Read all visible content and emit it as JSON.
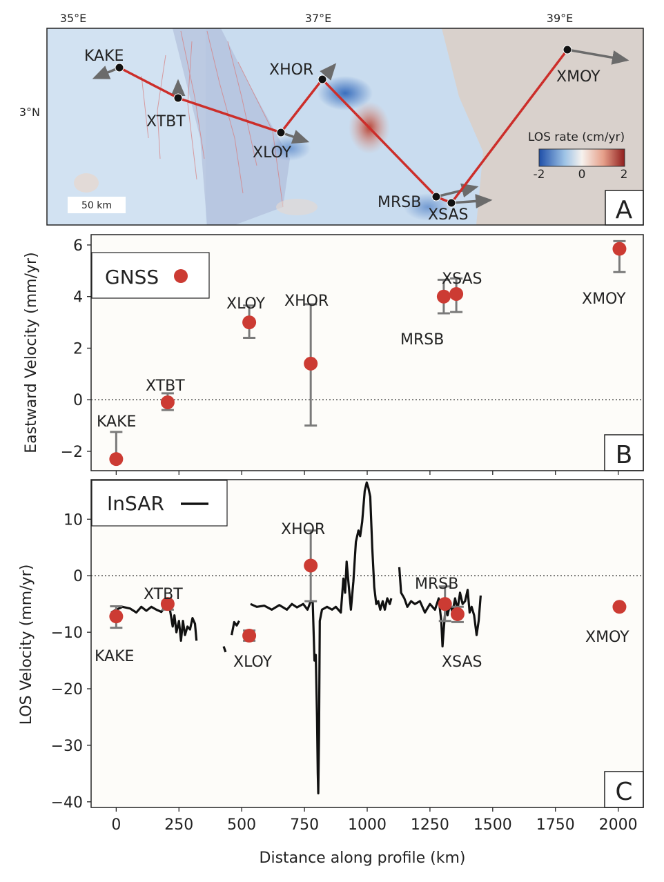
{
  "panel_a": {
    "letter": "A",
    "lon_labels": [
      "35°E",
      "37°E",
      "39°E"
    ],
    "lat_labels": [
      "3°N"
    ],
    "scale_bar": "50 km",
    "colorbar": {
      "title": "LOS rate (cm/yr)",
      "min_label": "-2",
      "mid_label": "0",
      "max_label": "2",
      "colors": [
        "#1f4fa8",
        "#9ec3e6",
        "#f6f2ee",
        "#e6a08a",
        "#8f1d1d"
      ]
    },
    "stations": [
      {
        "name": "KAKE"
      },
      {
        "name": "XTBT"
      },
      {
        "name": "XLOY"
      },
      {
        "name": "XHOR"
      },
      {
        "name": "MRSB"
      },
      {
        "name": "XSAS"
      },
      {
        "name": "XMOY"
      }
    ],
    "colors": {
      "profile": "#cc2e2a",
      "arrow": "#6b6b6b",
      "land": "#d9d1cc",
      "insar": "#c5daf0"
    }
  },
  "chart_data": [
    {
      "type": "scatter",
      "panel": "B",
      "ylabel": "Eastward Velocity (mm/yr)",
      "xlim": [
        -100,
        2100
      ],
      "ylim": [
        -2.75,
        6.4
      ],
      "yticks": [
        -2,
        0,
        2,
        4,
        6
      ],
      "legend": {
        "label": "GNSS",
        "position": "top-left"
      },
      "reference_line": 0,
      "series": [
        {
          "name": "GNSS",
          "color": "#cc3b33",
          "points": [
            {
              "label": "KAKE",
              "x": 0,
              "y": -2.3,
              "err_low": -2.3,
              "err_high": -1.25
            },
            {
              "label": "XTBT",
              "x": 205,
              "y": -0.1,
              "err_low": -0.4,
              "err_high": 0.25
            },
            {
              "label": "XLOY",
              "x": 530,
              "y": 3.0,
              "err_low": 2.4,
              "err_high": 3.65
            },
            {
              "label": "XHOR",
              "x": 775,
              "y": 1.4,
              "err_low": -1.0,
              "err_high": 3.7
            },
            {
              "label": "MRSB",
              "x": 1305,
              "y": 4.0,
              "err_low": 3.35,
              "err_high": 4.65
            },
            {
              "label": "XSAS",
              "x": 1355,
              "y": 4.1,
              "err_low": 3.4,
              "err_high": 4.7
            },
            {
              "label": "XMOY",
              "x": 2005,
              "y": 5.85,
              "err_low": 4.95,
              "err_high": 6.15
            }
          ]
        }
      ]
    },
    {
      "type": "line",
      "panel": "C",
      "xlabel": "Distance along profile (km)",
      "ylabel": "LOS Velocity (mm/yr)",
      "xlim": [
        -100,
        2100
      ],
      "ylim": [
        -41,
        17
      ],
      "xticks": [
        0,
        250,
        500,
        750,
        1000,
        1250,
        1500,
        1750,
        2000
      ],
      "yticks": [
        -40,
        -30,
        -20,
        -10,
        0,
        10
      ],
      "legend": {
        "label": "InSAR",
        "position": "top-left"
      },
      "reference_line": 0,
      "series": [
        {
          "name": "InSAR",
          "color": "#111111",
          "segments": [
            [
              [
                -20,
                -6.5
              ],
              [
                0,
                -6.0
              ],
              [
                25,
                -5.5
              ],
              [
                55,
                -5.8
              ],
              [
                80,
                -6.5
              ],
              [
                100,
                -5.5
              ],
              [
                120,
                -6.2
              ],
              [
                140,
                -5.5
              ],
              [
                160,
                -6.0
              ],
              [
                180,
                -6.4
              ],
              [
                200,
                -5.0
              ],
              [
                215,
                -6.2
              ],
              [
                225,
                -9.0
              ],
              [
                232,
                -7.0
              ],
              [
                240,
                -10.0
              ],
              [
                250,
                -8.0
              ],
              [
                258,
                -11.5
              ],
              [
                266,
                -8.0
              ],
              [
                274,
                -10.5
              ],
              [
                284,
                -9.0
              ],
              [
                294,
                -9.5
              ],
              [
                304,
                -7.5
              ],
              [
                314,
                -8.5
              ],
              [
                320,
                -11.5
              ]
            ],
            [
              [
                428,
                -12.5
              ],
              [
                436,
                -13.5
              ]
            ],
            [
              [
                460,
                -10.5
              ],
              [
                470,
                -8.2
              ],
              [
                480,
                -8.8
              ],
              [
                490,
                -8.0
              ]
            ],
            [
              [
                535,
                -5.0
              ],
              [
                560,
                -5.5
              ],
              [
                590,
                -5.3
              ],
              [
                620,
                -6.0
              ],
              [
                650,
                -5.2
              ],
              [
                680,
                -6.0
              ],
              [
                700,
                -5.0
              ],
              [
                720,
                -5.6
              ],
              [
                745,
                -5.0
              ],
              [
                762,
                -6.0
              ],
              [
                775,
                -4.5
              ],
              [
                783,
                -4.8
              ],
              [
                790,
                -15.0
              ],
              [
                795,
                -14.0
              ],
              [
                800,
                -25.0
              ],
              [
                803,
                -35.0
              ],
              [
                805,
                -38.5
              ],
              [
                808,
                -28.0
              ],
              [
                811,
                -8.0
              ],
              [
                820,
                -6.0
              ],
              [
                840,
                -5.5
              ],
              [
                860,
                -6.0
              ],
              [
                875,
                -5.5
              ],
              [
                895,
                -6.5
              ],
              [
                905,
                -0.5
              ],
              [
                912,
                -3.0
              ],
              [
                918,
                2.5
              ],
              [
                925,
                -1.0
              ],
              [
                935,
                -6.0
              ],
              [
                945,
                -1.0
              ],
              [
                955,
                6.0
              ],
              [
                965,
                8.0
              ],
              [
                972,
                7.0
              ],
              [
                980,
                9.5
              ],
              [
                990,
                15.0
              ],
              [
                998,
                16.5
              ],
              [
                1005,
                15.5
              ],
              [
                1012,
                14.0
              ],
              [
                1020,
                5.0
              ],
              [
                1028,
                -2.0
              ],
              [
                1036,
                -5.0
              ],
              [
                1044,
                -4.5
              ],
              [
                1052,
                -6.0
              ],
              [
                1062,
                -4.5
              ],
              [
                1070,
                -6.0
              ],
              [
                1080,
                -4.0
              ],
              [
                1090,
                -5.0
              ],
              [
                1096,
                -4.0
              ]
            ],
            [
              [
                1128,
                1.5
              ],
              [
                1135,
                -3.0
              ],
              [
                1148,
                -4.0
              ],
              [
                1160,
                -5.5
              ],
              [
                1175,
                -4.5
              ],
              [
                1190,
                -5.0
              ],
              [
                1210,
                -4.5
              ],
              [
                1230,
                -6.5
              ],
              [
                1250,
                -5.0
              ],
              [
                1270,
                -6.0
              ],
              [
                1285,
                -4.0
              ],
              [
                1295,
                -8.0
              ],
              [
                1300,
                -12.5
              ],
              [
                1305,
                -9.5
              ],
              [
                1312,
                -5.5
              ],
              [
                1320,
                -7.0
              ],
              [
                1330,
                -5.0
              ],
              [
                1340,
                -6.5
              ],
              [
                1350,
                -4.0
              ],
              [
                1360,
                -6.0
              ],
              [
                1370,
                -3.0
              ],
              [
                1380,
                -5.0
              ],
              [
                1390,
                -4.5
              ],
              [
                1400,
                -2.5
              ],
              [
                1408,
                -6.5
              ],
              [
                1416,
                -5.5
              ],
              [
                1426,
                -7.0
              ],
              [
                1436,
                -10.5
              ],
              [
                1444,
                -8.0
              ],
              [
                1452,
                -3.5
              ]
            ]
          ]
        },
        {
          "name": "GNSS",
          "color": "#cc3b33",
          "points": [
            {
              "label": "KAKE",
              "x": 0,
              "y": -7.2,
              "err_low": -9.2,
              "err_high": -5.4
            },
            {
              "label": "XTBT",
              "x": 205,
              "y": -5.0,
              "err_low": -6.0,
              "err_high": -4.5
            },
            {
              "label": "XLOY",
              "x": 530,
              "y": -10.6,
              "err_low": -11.5,
              "err_high": -9.7
            },
            {
              "label": "XHOR",
              "x": 775,
              "y": 1.8,
              "err_low": -4.5,
              "err_high": 8.0
            },
            {
              "label": "MRSB",
              "x": 1310,
              "y": -5.0,
              "err_low": -8.0,
              "err_high": -1.9
            },
            {
              "label": "XSAS",
              "x": 1360,
              "y": -6.8,
              "err_low": -8.2,
              "err_high": -5.5
            },
            {
              "label": "XMOY",
              "x": 2005,
              "y": -5.5,
              "err_low": -5.5,
              "err_high": -5.5
            }
          ]
        }
      ]
    }
  ],
  "panel_b_letter": "B",
  "panel_c_letter": "C"
}
